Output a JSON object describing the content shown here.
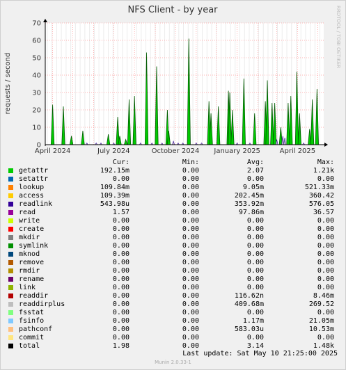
{
  "chart_data": {
    "type": "area",
    "title": "NFS Client - by year",
    "ylabel": "requests / second",
    "ylim": [
      0,
      70
    ],
    "yticks": [
      0,
      10,
      20,
      30,
      40,
      50,
      60,
      70
    ],
    "xticks": [
      "April 2024",
      "July 2024",
      "October 2024",
      "January 2025",
      "April 2025"
    ],
    "xrange": [
      "2024-03-21",
      "2025-05-10"
    ],
    "grid": true,
    "side_label": "RRDTOOL / TOBI OETIKER",
    "colors": {
      "getattr": "#00cc00",
      "readdirplus": "#c0c0c0",
      "readlink": "#330099",
      "access": "#ffcc00",
      "total": "#000000",
      "grid": "#ff9999",
      "axis": "#000000",
      "plot_bg": "#ffffff"
    },
    "spikes": [
      {
        "date": "2024-04-01",
        "value": 23
      },
      {
        "date": "2024-04-17",
        "value": 22
      },
      {
        "date": "2024-04-29",
        "value": 5
      },
      {
        "date": "2024-05-16",
        "value": 8
      },
      {
        "date": "2024-06-23",
        "value": 6
      },
      {
        "date": "2024-07-07",
        "value": 16
      },
      {
        "date": "2024-07-10",
        "value": 5
      },
      {
        "date": "2024-07-19",
        "value": 3
      },
      {
        "date": "2024-07-24",
        "value": 26
      },
      {
        "date": "2024-08-01",
        "value": 28
      },
      {
        "date": "2024-08-19",
        "value": 53
      },
      {
        "date": "2024-09-03",
        "value": 45
      },
      {
        "date": "2024-09-19",
        "value": 20
      },
      {
        "date": "2024-09-21",
        "value": 8
      },
      {
        "date": "2024-10-21",
        "value": 61
      },
      {
        "date": "2024-11-20",
        "value": 25
      },
      {
        "date": "2024-11-23",
        "value": 18
      },
      {
        "date": "2024-12-04",
        "value": 22
      },
      {
        "date": "2024-12-19",
        "value": 31
      },
      {
        "date": "2024-12-21",
        "value": 30
      },
      {
        "date": "2024-12-25",
        "value": 20
      },
      {
        "date": "2025-01-11",
        "value": 38
      },
      {
        "date": "2025-01-27",
        "value": 18
      },
      {
        "date": "2025-02-12",
        "value": 25
      },
      {
        "date": "2025-02-15",
        "value": 37
      },
      {
        "date": "2025-02-22",
        "value": 24
      },
      {
        "date": "2025-02-26",
        "value": 24
      },
      {
        "date": "2025-03-07",
        "value": 10
      },
      {
        "date": "2025-03-18",
        "value": 24
      },
      {
        "date": "2025-03-22",
        "value": 28
      },
      {
        "date": "2025-03-31",
        "value": 42
      },
      {
        "date": "2025-04-04",
        "value": 18
      },
      {
        "date": "2025-04-19",
        "value": 9
      },
      {
        "date": "2025-04-23",
        "value": 26
      },
      {
        "date": "2025-04-30",
        "value": 32
      },
      {
        "date": "2025-05-15",
        "value": 28
      }
    ],
    "small_marks": [
      {
        "date": "2024-05-22",
        "value": 1
      },
      {
        "date": "2024-06-05",
        "value": 1
      },
      {
        "date": "2024-06-12",
        "value": 1
      },
      {
        "date": "2024-07-01",
        "value": 1
      },
      {
        "date": "2024-08-10",
        "value": 1
      },
      {
        "date": "2024-08-27",
        "value": 1
      },
      {
        "date": "2024-09-11",
        "value": 1
      },
      {
        "date": "2024-09-28",
        "value": 2
      },
      {
        "date": "2024-10-05",
        "value": 1
      },
      {
        "date": "2024-10-12",
        "value": 1
      },
      {
        "date": "2024-11-01",
        "value": 1
      },
      {
        "date": "2024-11-09",
        "value": 1
      },
      {
        "date": "2025-01-01",
        "value": 1
      },
      {
        "date": "2025-01-20",
        "value": 1
      },
      {
        "date": "2025-03-01",
        "value": 3
      },
      {
        "date": "2025-03-10",
        "value": 5
      },
      {
        "date": "2025-03-13",
        "value": 4
      },
      {
        "date": "2025-04-10",
        "value": 1
      }
    ]
  },
  "legend": {
    "headers": {
      "cur": "Cur:",
      "min": "Min:",
      "avg": "Avg:",
      "max": "Max:"
    },
    "rows": [
      {
        "name": "getattr",
        "color": "#00cc00",
        "cur": "192.15m",
        "min": "0.00",
        "avg": "2.07",
        "max": "1.21k"
      },
      {
        "name": "setattr",
        "color": "#0066b3",
        "cur": "0.00",
        "min": "0.00",
        "avg": "0.00",
        "max": "0.00"
      },
      {
        "name": "lookup",
        "color": "#ff8000",
        "cur": "109.84m",
        "min": "0.00",
        "avg": "9.05m",
        "max": "521.33m"
      },
      {
        "name": "access",
        "color": "#ffcc00",
        "cur": "109.39m",
        "min": "0.00",
        "avg": "202.45m",
        "max": "360.42"
      },
      {
        "name": "readlink",
        "color": "#330099",
        "cur": "543.98u",
        "min": "0.00",
        "avg": "353.92m",
        "max": "576.05"
      },
      {
        "name": "read",
        "color": "#990099",
        "cur": "1.57",
        "min": "0.00",
        "avg": "97.86m",
        "max": "36.57"
      },
      {
        "name": "write",
        "color": "#ccff00",
        "cur": "0.00",
        "min": "0.00",
        "avg": "0.00",
        "max": "0.00"
      },
      {
        "name": "create",
        "color": "#ff0000",
        "cur": "0.00",
        "min": "0.00",
        "avg": "0.00",
        "max": "0.00"
      },
      {
        "name": "mkdir",
        "color": "#808080",
        "cur": "0.00",
        "min": "0.00",
        "avg": "0.00",
        "max": "0.00"
      },
      {
        "name": "symlink",
        "color": "#008f00",
        "cur": "0.00",
        "min": "0.00",
        "avg": "0.00",
        "max": "0.00"
      },
      {
        "name": "mknod",
        "color": "#00487d",
        "cur": "0.00",
        "min": "0.00",
        "avg": "0.00",
        "max": "0.00"
      },
      {
        "name": "remove",
        "color": "#b35a00",
        "cur": "0.00",
        "min": "0.00",
        "avg": "0.00",
        "max": "0.00"
      },
      {
        "name": "rmdir",
        "color": "#b38f00",
        "cur": "0.00",
        "min": "0.00",
        "avg": "0.00",
        "max": "0.00"
      },
      {
        "name": "rename",
        "color": "#6b006b",
        "cur": "0.00",
        "min": "0.00",
        "avg": "0.00",
        "max": "0.00"
      },
      {
        "name": "link",
        "color": "#8fb300",
        "cur": "0.00",
        "min": "0.00",
        "avg": "0.00",
        "max": "0.00"
      },
      {
        "name": "readdir",
        "color": "#b30000",
        "cur": "0.00",
        "min": "0.00",
        "avg": "116.62n",
        "max": "8.46m"
      },
      {
        "name": "readdirplus",
        "color": "#bebebe",
        "cur": "0.00",
        "min": "0.00",
        "avg": "409.68m",
        "max": "269.52"
      },
      {
        "name": "fsstat",
        "color": "#80ff80",
        "cur": "0.00",
        "min": "0.00",
        "avg": "0.00",
        "max": "0.00"
      },
      {
        "name": "fsinfo",
        "color": "#80c9ff",
        "cur": "0.00",
        "min": "0.00",
        "avg": "1.17m",
        "max": "21.05m"
      },
      {
        "name": "pathconf",
        "color": "#ffc080",
        "cur": "0.00",
        "min": "0.00",
        "avg": "583.03u",
        "max": "10.53m"
      },
      {
        "name": "commit",
        "color": "#ffe680",
        "cur": "0.00",
        "min": "0.00",
        "avg": "0.00",
        "max": "0.00"
      },
      {
        "name": "total",
        "color": "#000000",
        "cur": "1.98",
        "min": "0.00",
        "avg": "3.14",
        "max": "1.48k"
      }
    ]
  },
  "last_update": "Last update:  Sat May 10 21:25:00 2025",
  "footer": "Munin 2.0.33-1"
}
